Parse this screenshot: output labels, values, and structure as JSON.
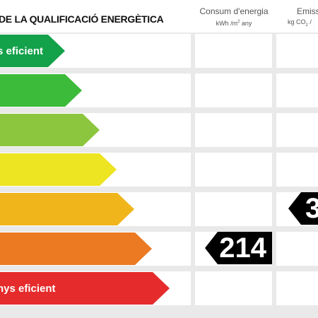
{
  "header": {
    "title": "DE LA QUALIFICACIÓ ENERGÈTICA",
    "col1_title": "Consum d'energia",
    "col1_unit_a": "kWh /m",
    "col1_unit_sup": "2",
    "col1_unit_b": " any",
    "col2_title": "Emissi",
    "col2_unit_a": "kg CO",
    "col2_unit_sub": "2",
    "col2_unit_b": " /"
  },
  "bands": [
    {
      "label": "s eficient",
      "color": "#13a14a"
    },
    {
      "label": "",
      "color": "#3cba3a"
    },
    {
      "label": "",
      "color": "#8cc63f"
    },
    {
      "label": "",
      "color": "#ede422"
    },
    {
      "label": "",
      "color": "#f1b51c"
    },
    {
      "label": "",
      "color": "#eb7a22"
    },
    {
      "label": "nys eficient",
      "color": "#e52b2b"
    }
  ],
  "ratings": {
    "energy_value": "214",
    "energy_band_index": 5,
    "emissions_value": "3",
    "emissions_band_index": 4
  }
}
